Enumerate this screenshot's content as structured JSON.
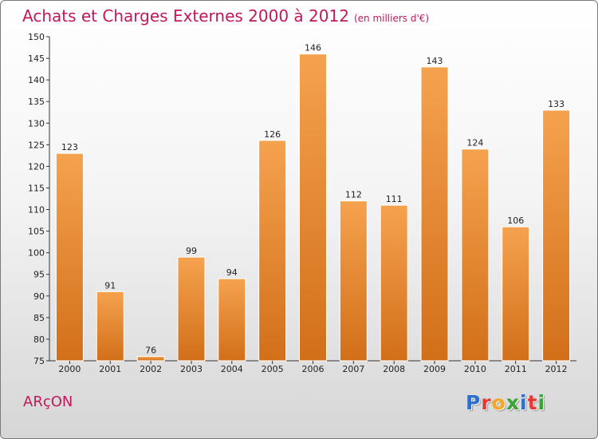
{
  "title": "Achats et Charges Externes 2000 à 2012",
  "subtitle": "(en milliers d'€)",
  "commune": "ARçON",
  "brand": {
    "letters": [
      {
        "ch": "P",
        "color": "#2e6fc9"
      },
      {
        "ch": "r",
        "color": "#e53935"
      },
      {
        "ch": "o",
        "color": "#f5a623"
      },
      {
        "ch": "x",
        "color": "#3aa335"
      },
      {
        "ch": "i",
        "color": "#2e6fc9"
      },
      {
        "ch": "t",
        "color": "#e53935"
      },
      {
        "ch": "i",
        "color": "#3aa335"
      }
    ]
  },
  "colors": {
    "bar_top": "#f5a24f",
    "bar_bottom": "#d26f19",
    "title": "#c2185b"
  },
  "chart_data": {
    "type": "bar",
    "title": "Achats et Charges Externes 2000 à 2012",
    "subtitle": "(en milliers d'€)",
    "categories": [
      "2000",
      "2001",
      "2002",
      "2003",
      "2004",
      "2005",
      "2006",
      "2007",
      "2008",
      "2009",
      "2010",
      "2011",
      "2012"
    ],
    "values": [
      123,
      91,
      76,
      99,
      94,
      126,
      146,
      112,
      111,
      143,
      124,
      106,
      133
    ],
    "ylim": [
      75,
      150
    ],
    "yticks": [
      75,
      80,
      85,
      90,
      95,
      100,
      105,
      110,
      115,
      120,
      125,
      130,
      135,
      140,
      145,
      150
    ],
    "xlabel": "",
    "ylabel": "",
    "data_labels": true,
    "grid": false
  }
}
